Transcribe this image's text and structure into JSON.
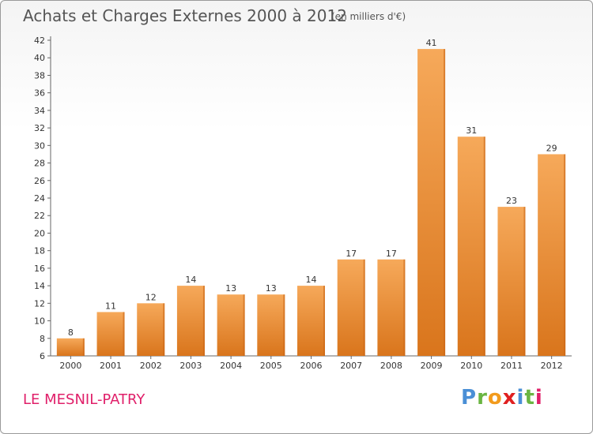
{
  "header": {
    "title": "Achats et Charges Externes 2000 à 2012",
    "subtitle": "(en milliers d'€)"
  },
  "footer": {
    "commune": "LE MESNIL-PATRY",
    "logo": "Proxiti"
  },
  "colors": {
    "bar_top": "#f6a95a",
    "bar_bottom": "#d9751c",
    "bar_side": "#c96515"
  },
  "chart_data": {
    "type": "bar",
    "title": "Achats et Charges Externes 2000 à 2012",
    "subtitle": "(en milliers d'€)",
    "categories": [
      "2000",
      "2001",
      "2002",
      "2003",
      "2004",
      "2005",
      "2006",
      "2007",
      "2008",
      "2009",
      "2010",
      "2011",
      "2012"
    ],
    "values": [
      8,
      11,
      12,
      14,
      13,
      13,
      14,
      17,
      17,
      41,
      31,
      23,
      29
    ],
    "ylim": [
      6,
      42
    ],
    "yticks": [
      6,
      8,
      10,
      12,
      14,
      16,
      18,
      20,
      22,
      24,
      26,
      28,
      30,
      32,
      34,
      36,
      38,
      40,
      42
    ],
    "grid": false
  }
}
